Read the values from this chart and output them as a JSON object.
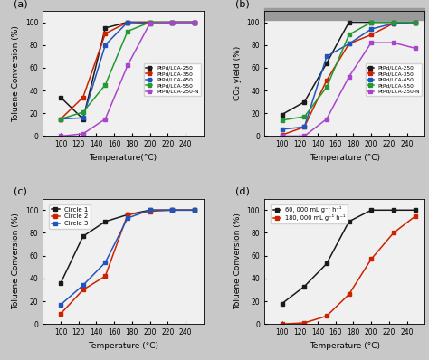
{
  "temp": [
    100,
    125,
    150,
    175,
    200,
    225,
    250
  ],
  "a_250": [
    34,
    15,
    95,
    100,
    100,
    100,
    100
  ],
  "a_350": [
    15,
    34,
    90,
    100,
    100,
    100,
    100
  ],
  "a_450": [
    15,
    16,
    80,
    100,
    99,
    100,
    100
  ],
  "a_550": [
    15,
    21,
    45,
    92,
    100,
    100,
    100
  ],
  "a_250N": [
    0,
    2,
    15,
    62,
    99,
    100,
    100
  ],
  "b_250": [
    19,
    30,
    64,
    100,
    100,
    100,
    100
  ],
  "b_350": [
    1,
    8,
    49,
    81,
    89,
    99,
    100
  ],
  "b_450": [
    6,
    8,
    70,
    81,
    94,
    99,
    100
  ],
  "b_550": [
    14,
    17,
    43,
    89,
    100,
    100,
    100
  ],
  "b_250N": [
    0,
    0,
    15,
    52,
    82,
    82,
    77
  ],
  "c_circle1": [
    36,
    77,
    90,
    96,
    100,
    100,
    100
  ],
  "c_circle2": [
    9,
    30,
    42,
    96,
    99,
    100,
    100
  ],
  "c_circle3": [
    17,
    34,
    54,
    93,
    100,
    100,
    100
  ],
  "d_60k": [
    18,
    33,
    53,
    90,
    100,
    100,
    100
  ],
  "d_180k": [
    0,
    1,
    7,
    26,
    57,
    80,
    95
  ],
  "color_250": "#1a1a1a",
  "color_350": "#cc2200",
  "color_450": "#2255bb",
  "color_550": "#229933",
  "color_250N": "#aa44cc",
  "color_circle1": "#1a1a1a",
  "color_circle2": "#cc2200",
  "color_circle3": "#2255bb",
  "color_60k": "#1a1a1a",
  "color_180k": "#cc2200",
  "outer_bg": "#c8c8c8",
  "panel_bg": "#f0f0f0",
  "gray_bar": "#9a9a9a"
}
